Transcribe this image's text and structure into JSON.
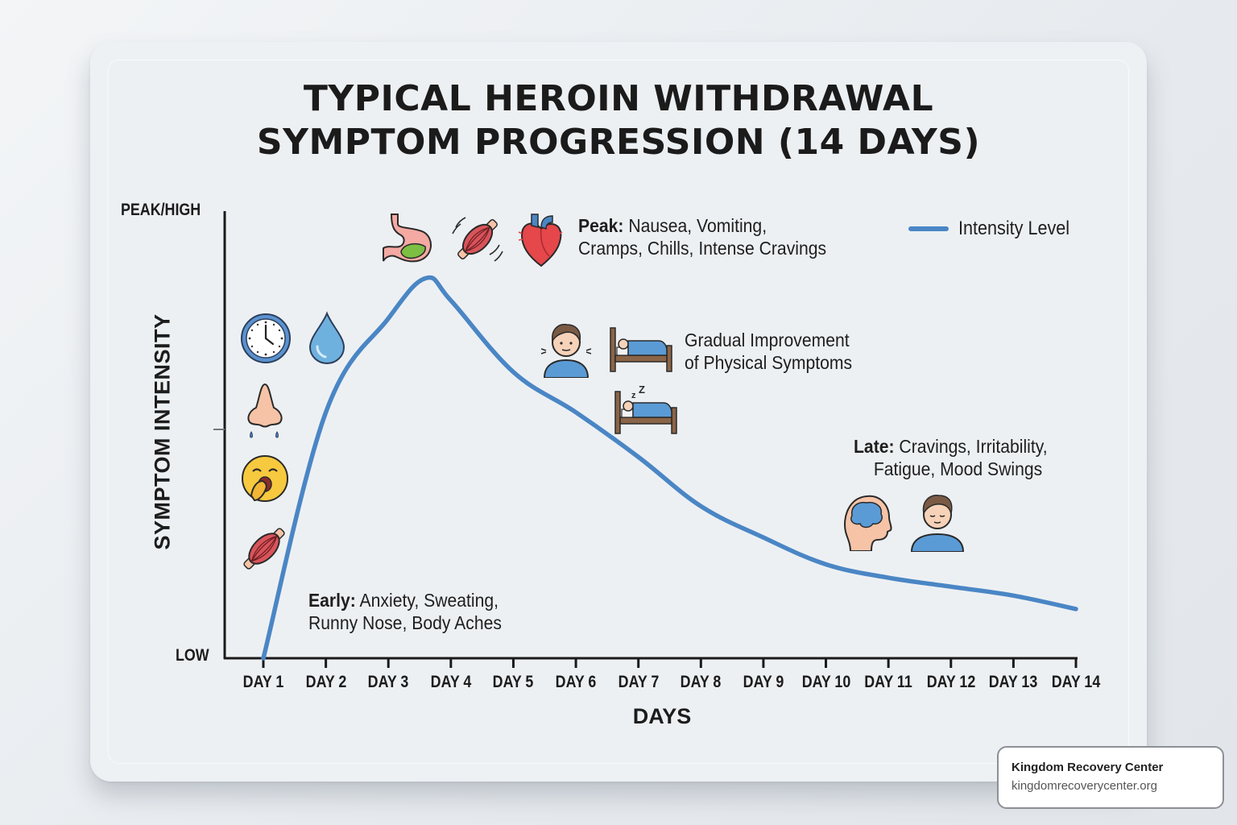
{
  "title": {
    "line1": "TYPICAL HEROIN WITHDRAWAL",
    "line2": "SYMPTOM PROGRESSION (14 DAYS)"
  },
  "axes": {
    "y_label": "SYMPTOM INTENSITY",
    "y_top": "PEAK/HIGH",
    "y_bottom": "LOW",
    "x_label": "DAYS",
    "x_ticks": [
      "DAY 1",
      "DAY 2",
      "DAY 3",
      "DAY 4",
      "DAY 5",
      "DAY 6",
      "DAY 7",
      "DAY 8",
      "DAY 9",
      "DAY 10",
      "DAY 11",
      "DAY 12",
      "DAY 13",
      "DAY 14"
    ]
  },
  "legend": {
    "label": "Intensity Level",
    "color": "#4a86c5"
  },
  "annotations": {
    "peak": {
      "bold": "Peak:",
      "line1": " Nausea, Vomiting,",
      "line2": "Cramps, Chills, Intense Cravings"
    },
    "gradual": {
      "line1": "Gradual Improvement",
      "line2": "of Physical Symptoms"
    },
    "late": {
      "bold": "Late:",
      "line1": " Cravings, Irritability,",
      "line2": "Fatigue, Mood Swings"
    },
    "early": {
      "bold": "Early:",
      "line1": " Anxiety, Sweating,",
      "line2": "Runny Nose, Body Aches"
    }
  },
  "icons": {
    "early": [
      "clock-icon",
      "water-drop-icon",
      "runny-nose-icon",
      "yawning-face-icon",
      "muscle-icon"
    ],
    "peak": [
      "stomach-icon",
      "muscle-cramp-icon",
      "heart-icon"
    ],
    "gradual": [
      "person-chills-icon",
      "bed-icon",
      "sleeping-bed-icon"
    ],
    "late": [
      "brain-head-icon",
      "calm-person-icon"
    ]
  },
  "badge": {
    "name": "Kingdom Recovery Center",
    "url": "kingdomrecoverycenter.org"
  },
  "chart_data": {
    "type": "line",
    "title": "Typical Heroin Withdrawal Symptom Progression (14 Days)",
    "xlabel": "Days",
    "ylabel": "Symptom Intensity",
    "categories": [
      "Day 1",
      "Day 2",
      "Day 3",
      "Day 4",
      "Day 5",
      "Day 6",
      "Day 7",
      "Day 8",
      "Day 9",
      "Day 10",
      "Day 11",
      "Day 12",
      "Day 13",
      "Day 14"
    ],
    "series": [
      {
        "name": "Intensity Level",
        "values": [
          0,
          55,
          76,
          80,
          64,
          55,
          45,
          34,
          27,
          21,
          18,
          16,
          14,
          11
        ]
      }
    ],
    "peak": {
      "x": 3.6,
      "y": 85
    },
    "ylim": [
      0,
      100
    ],
    "y_tick_labels": {
      "0": "LOW",
      "100": "PEAK/HIGH"
    },
    "grid": false,
    "legend_position": "top-right",
    "annotations": [
      "Early: Anxiety, Sweating, Runny Nose, Body Aches",
      "Peak: Nausea, Vomiting, Cramps, Chills, Intense Cravings",
      "Gradual Improvement of Physical Symptoms",
      "Late: Cravings, Irritability, Fatigue, Mood Swings"
    ]
  }
}
